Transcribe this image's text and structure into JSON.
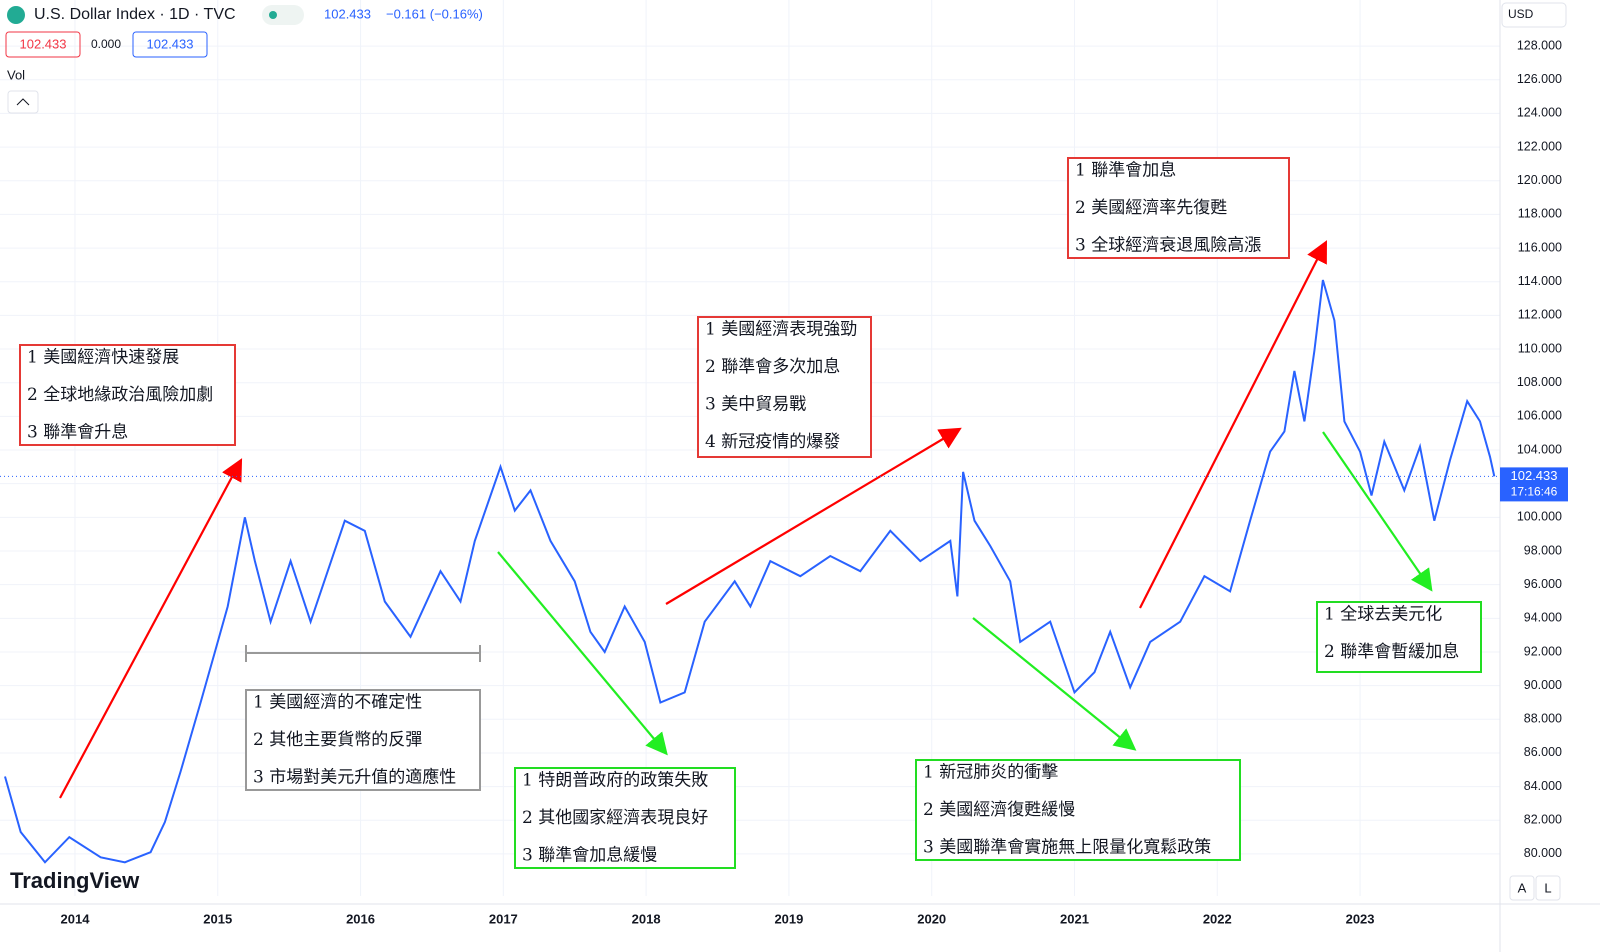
{
  "header": {
    "symbol": "U.S. Dollar Index · 1D · TVC",
    "price": "102.433",
    "change": "−0.161 (−0.16%)",
    "sell": "102.433",
    "spread": "0.000",
    "buy": "102.433",
    "vol": "Vol",
    "currency": "USD",
    "time": "17:16:46",
    "brand": "TradingView",
    "btn_a": "A",
    "btn_l": "L"
  },
  "chart_data": {
    "type": "line",
    "color": "#2962ff",
    "x": [
      2013.51,
      2013.62,
      2013.79,
      2013.96,
      2014.18,
      2014.35,
      2014.53,
      2014.63,
      2014.74,
      2014.88,
      2014.98,
      2015.07,
      2015.19,
      2015.26,
      2015.37,
      2015.51,
      2015.65,
      2015.89,
      2016.03,
      2016.17,
      2016.35,
      2016.56,
      2016.7,
      2016.8,
      2016.98,
      2017.08,
      2017.19,
      2017.33,
      2017.5,
      2017.61,
      2017.71,
      2017.85,
      2017.99,
      2018.1,
      2018.27,
      2018.41,
      2018.62,
      2018.73,
      2018.87,
      2019.08,
      2019.29,
      2019.5,
      2019.71,
      2019.92,
      2020.13,
      2020.18,
      2020.22,
      2020.3,
      2020.41,
      2020.55,
      2020.62,
      2020.83,
      2021.0,
      2021.14,
      2021.25,
      2021.39,
      2021.53,
      2021.74,
      2021.91,
      2022.09,
      2022.23,
      2022.37,
      2022.47,
      2022.54,
      2022.61,
      2022.68,
      2022.74,
      2022.82,
      2022.89,
      2023.0,
      2023.08,
      2023.17,
      2023.31,
      2023.42,
      2023.52,
      2023.63,
      2023.75,
      2023.84,
      2023.91,
      2023.94
    ],
    "values": [
      84.6,
      81.3,
      79.5,
      81,
      79.8,
      79.5,
      80.1,
      81.9,
      84.9,
      89,
      92,
      94.7,
      100,
      97.4,
      93.8,
      97.4,
      93.8,
      99.8,
      99.2,
      95,
      92.9,
      96.8,
      95,
      98.6,
      103,
      100.4,
      101.6,
      98.6,
      96.2,
      93.2,
      92,
      94.7,
      92.6,
      89,
      89.6,
      93.8,
      96.2,
      94.7,
      97.4,
      96.5,
      97.7,
      96.8,
      99.2,
      97.4,
      98.6,
      95.3,
      102.7,
      99.8,
      98.3,
      96.2,
      92.6,
      93.8,
      89.6,
      90.8,
      93.2,
      89.9,
      92.6,
      93.8,
      96.5,
      95.6,
      99.8,
      103.9,
      105.1,
      108.7,
      105.7,
      109.9,
      114.1,
      111.7,
      105.7,
      103.9,
      101.3,
      104.5,
      101.6,
      104.2,
      99.8,
      103.4,
      106.9,
      105.7,
      103.6,
      102.433
    ],
    "last_price": 102.433,
    "xlim": [
      2013.475,
      2023.98
    ],
    "ylim": [
      77.5,
      130.74
    ],
    "xticks": [
      2014,
      2015,
      2016,
      2017,
      2018,
      2019,
      2020,
      2021,
      2022,
      2023
    ],
    "yticks": [
      {
        "value": 80,
        "label": "80.000"
      },
      {
        "value": 82,
        "label": "82.000"
      },
      {
        "value": 84,
        "label": "84.000"
      },
      {
        "value": 86,
        "label": "86.000"
      },
      {
        "value": 88,
        "label": "88.000"
      },
      {
        "value": 90,
        "label": "90.000"
      },
      {
        "value": 92,
        "label": "92.000"
      },
      {
        "value": 94,
        "label": "94.000"
      },
      {
        "value": 96,
        "label": "96.000"
      },
      {
        "value": 98,
        "label": "98.000"
      },
      {
        "value": 100,
        "label": "100.000"
      },
      {
        "value": 102,
        "label": "102.000"
      },
      {
        "value": 104,
        "label": "104.000"
      },
      {
        "value": 106,
        "label": "106.000"
      },
      {
        "value": 108,
        "label": "108.000"
      },
      {
        "value": 110,
        "label": "110.000"
      },
      {
        "value": 112,
        "label": "112.000"
      },
      {
        "value": 114,
        "label": "114.000"
      },
      {
        "value": 116,
        "label": "116.000"
      },
      {
        "value": 118,
        "label": "118.000"
      },
      {
        "value": 120,
        "label": "120.000"
      },
      {
        "value": 122,
        "label": "122.000"
      },
      {
        "value": 124,
        "label": "124.000"
      },
      {
        "value": 126,
        "label": "126.000"
      },
      {
        "value": 128,
        "label": "128.000"
      }
    ],
    "grid": true,
    "annotations": [
      {
        "color": "#e53935",
        "lines": [
          "1  美國經濟快速發展",
          "2  全球地緣政治風險加劇",
          "3  聯準會升息"
        ]
      },
      {
        "color": "#999999",
        "lines": [
          "1  美國經濟的不確定性",
          "2  其他主要貨幣的反彈",
          "3  市場對美元升值的適應性"
        ]
      },
      {
        "color": "#22dd22",
        "lines": [
          "1  特朗普政府的政策失敗",
          "2  其他國家經濟表現良好",
          "3  聯準會加息緩慢"
        ]
      },
      {
        "color": "#e53935",
        "lines": [
          "1  美國經濟表現強勁",
          "2  聯準會多次加息",
          "3  美中貿易戰",
          "4  新冠疫情的爆發"
        ]
      },
      {
        "color": "#22dd22",
        "lines": [
          "1  新冠肺炎的衝擊",
          "2  美國經濟復甦緩慢",
          "3  美國聯準會實施無上限量化寬鬆政策"
        ]
      },
      {
        "color": "#e53935",
        "lines": [
          "1  聯準會加息",
          "2  美國經濟率先復甦",
          "3  全球經濟衰退風險高漲"
        ]
      },
      {
        "color": "#22dd22",
        "lines": [
          "1  全球去美元化",
          "2  聯準會暫緩加息"
        ]
      }
    ]
  }
}
